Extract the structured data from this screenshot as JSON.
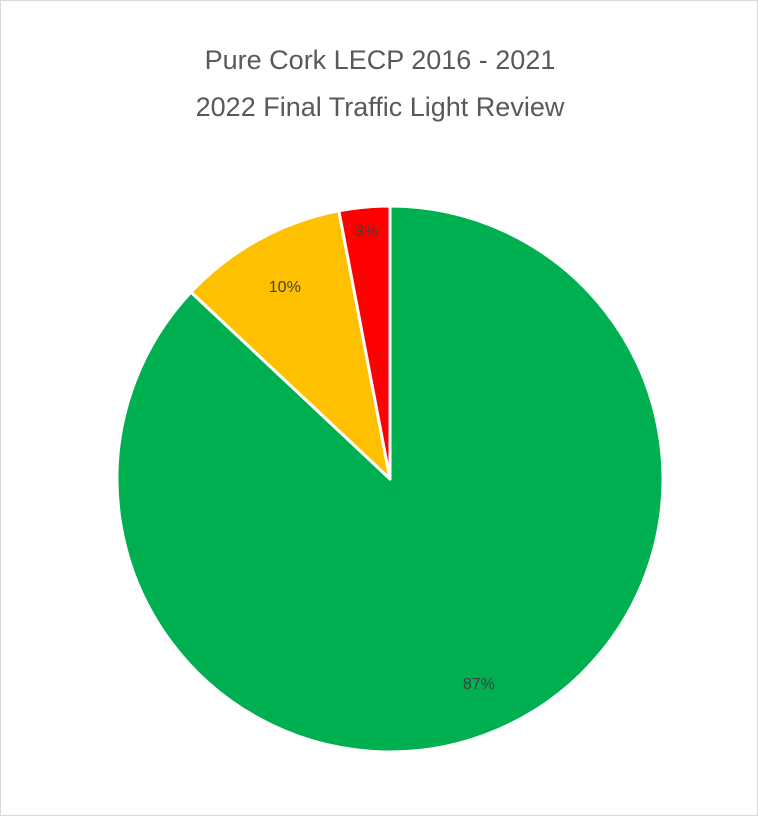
{
  "chart_data": {
    "type": "pie",
    "title_lines": [
      "Pure Cork LECP 2016 - 2021",
      "2022 Final Traffic Light Review"
    ],
    "slices": [
      {
        "value": 87,
        "label": "87%",
        "color": "#00b050"
      },
      {
        "value": 10,
        "label": "10%",
        "color": "#ffc000"
      },
      {
        "value": 3,
        "label": "3%",
        "color": "#ff0000"
      }
    ],
    "legend": "none"
  }
}
